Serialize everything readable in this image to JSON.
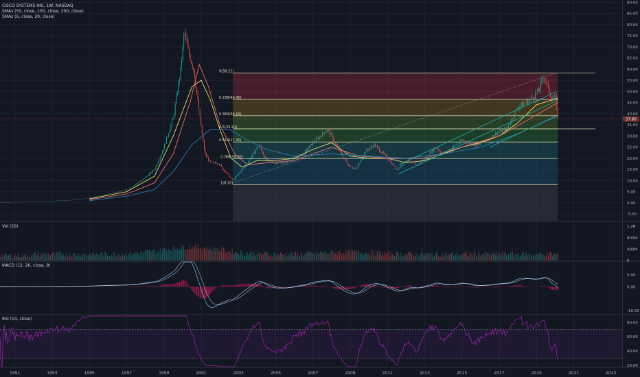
{
  "symbol_title": "CISCO SYSTEMS INC, 1W, NASDAQ",
  "indicators": {
    "sma_slow": "SMAs (50, close, 100, close, 200, close)",
    "sma_fast": "SMAs (6, close, 20, close)",
    "vol": "Vol (20)",
    "macd": "MACD (12, 26, close, 9)",
    "rsi": "RSI (14, close)"
  },
  "colors": {
    "background": "#131722",
    "grid": "#1e2230",
    "axis_text": "#b2b5be",
    "up": "#26a69a",
    "down": "#ef5350",
    "sma50": "#e8e36a",
    "sma100": "#ef6f6f",
    "sma200": "#2e7ab8",
    "macd_line": "#6fa8dc",
    "signal_line": "#e0e0e0",
    "macd_hist": "#e91e63",
    "rsi_line": "#9c27b0",
    "fib_line": "#c8c8a0",
    "trend": "#26a69a",
    "price_badge": "#6b2f33"
  },
  "chart_data": [
    {
      "type": "candlestick",
      "title": "CISCO SYSTEMS INC, 1W, NASDAQ",
      "x_ticks": [
        "1991",
        "1993",
        "1995",
        "1997",
        "1999",
        "2001",
        "2003",
        "2005",
        "2007",
        "2009",
        "2011",
        "2013",
        "2015",
        "2017",
        "2019",
        "2021",
        "2023"
      ],
      "x_range": [
        1990.2,
        2023.6
      ],
      "y_ticks": [
        "-5.00",
        "0.00",
        "5.00",
        "10.00",
        "15.00",
        "20.00",
        "25.00",
        "30.00",
        "35.00",
        "40.00",
        "45.00",
        "50.00",
        "55.00",
        "60.00",
        "65.00",
        "70.00",
        "75.00",
        "80.00",
        "85.00",
        "90.00"
      ],
      "ylim": [
        -8,
        91
      ],
      "current_price_label": "37.60",
      "current_price": 37.6,
      "price_path": [
        [
          1990.2,
          0.2
        ],
        [
          1992,
          0.5
        ],
        [
          1993,
          0.9
        ],
        [
          1994,
          1.2
        ],
        [
          1995,
          2.2
        ],
        [
          1996,
          4
        ],
        [
          1997,
          6
        ],
        [
          1997.8,
          10
        ],
        [
          1998.5,
          15
        ],
        [
          1999,
          25
        ],
        [
          1999.5,
          38
        ],
        [
          1999.9,
          60
        ],
        [
          2000.1,
          77
        ],
        [
          2000.3,
          68
        ],
        [
          2000.6,
          60
        ],
        [
          2000.9,
          40
        ],
        [
          2001.2,
          22
        ],
        [
          2001.5,
          18
        ],
        [
          2001.9,
          18
        ],
        [
          2002.3,
          14
        ],
        [
          2002.7,
          10
        ],
        [
          2003.1,
          14
        ],
        [
          2003.5,
          18
        ],
        [
          2004.1,
          26
        ],
        [
          2004.5,
          19
        ],
        [
          2005,
          18
        ],
        [
          2005.5,
          18
        ],
        [
          2006,
          20
        ],
        [
          2006.5,
          22
        ],
        [
          2007,
          27
        ],
        [
          2007.8,
          33
        ],
        [
          2008.3,
          25
        ],
        [
          2008.9,
          17
        ],
        [
          2009.3,
          15
        ],
        [
          2009.8,
          23
        ],
        [
          2010.3,
          26
        ],
        [
          2010.9,
          21
        ],
        [
          2011.5,
          15
        ],
        [
          2012,
          19
        ],
        [
          2012.6,
          17
        ],
        [
          2013,
          20
        ],
        [
          2013.6,
          25
        ],
        [
          2014,
          22
        ],
        [
          2014.5,
          25
        ],
        [
          2015,
          28
        ],
        [
          2015.7,
          26
        ],
        [
          2016.3,
          28
        ],
        [
          2016.8,
          31
        ],
        [
          2017.4,
          33
        ],
        [
          2018,
          43
        ],
        [
          2018.6,
          46
        ],
        [
          2019.1,
          50
        ],
        [
          2019.4,
          57
        ],
        [
          2019.8,
          47
        ],
        [
          2020.05,
          47
        ],
        [
          2020.15,
          37.6
        ]
      ],
      "sma_paths": {
        "sma50": [
          [
            1995,
            1.8
          ],
          [
            1997,
            5
          ],
          [
            1998.5,
            12
          ],
          [
            1999.5,
            30
          ],
          [
            2000.5,
            52
          ],
          [
            2001,
            55
          ],
          [
            2001.5,
            46
          ],
          [
            2002,
            33
          ],
          [
            2002.6,
            20
          ],
          [
            2003.2,
            16
          ],
          [
            2004,
            19
          ],
          [
            2005,
            19
          ],
          [
            2006,
            20
          ],
          [
            2007,
            24
          ],
          [
            2008,
            27
          ],
          [
            2009,
            21
          ],
          [
            2010,
            20
          ],
          [
            2011,
            20
          ],
          [
            2012,
            18
          ],
          [
            2013,
            19
          ],
          [
            2014,
            22
          ],
          [
            2015,
            25
          ],
          [
            2016,
            27
          ],
          [
            2017,
            30
          ],
          [
            2018,
            36
          ],
          [
            2019,
            44
          ],
          [
            2020.15,
            47
          ]
        ],
        "sma100": [
          [
            1995,
            1.5
          ],
          [
            1997,
            4
          ],
          [
            1998.5,
            9
          ],
          [
            1999.5,
            22
          ],
          [
            2000.4,
            45
          ],
          [
            2000.9,
            62
          ],
          [
            2001.4,
            52
          ],
          [
            2002,
            35
          ],
          [
            2002.8,
            22
          ],
          [
            2003.5,
            17
          ],
          [
            2004.5,
            18
          ],
          [
            2006,
            19
          ],
          [
            2008,
            25
          ],
          [
            2009.5,
            21
          ],
          [
            2011,
            20
          ],
          [
            2013,
            20
          ],
          [
            2015,
            25
          ],
          [
            2017,
            30
          ],
          [
            2018.5,
            37
          ],
          [
            2020.15,
            45
          ]
        ],
        "sma200": [
          [
            1995,
            1
          ],
          [
            1997,
            3
          ],
          [
            1998.5,
            6
          ],
          [
            1999.5,
            14
          ],
          [
            2000.5,
            26
          ],
          [
            2001.5,
            33
          ],
          [
            2002.5,
            33
          ],
          [
            2003.5,
            28
          ],
          [
            2004.5,
            24
          ],
          [
            2006,
            21
          ],
          [
            2008,
            22
          ],
          [
            2010,
            21
          ],
          [
            2012,
            20
          ],
          [
            2014,
            22
          ],
          [
            2016,
            25
          ],
          [
            2018,
            31
          ],
          [
            2020.15,
            39
          ]
        ]
      },
      "fib_levels": [
        {
          "ratio": "0",
          "value": 58.21,
          "label": "0(58.21)"
        },
        {
          "ratio": "0.236",
          "value": 46.4,
          "label": "0.236(46.40)"
        },
        {
          "ratio": "0.382",
          "value": 39.1,
          "label": "0.382(39.10)"
        },
        {
          "ratio": "0.5",
          "value": 33.2,
          "label": "0.5(33.20)"
        },
        {
          "ratio": "0.618",
          "value": 27.3,
          "label": "0.618(27.30)"
        },
        {
          "ratio": "0.786",
          "value": 19.9,
          "label": "0.786(19.90)"
        },
        {
          "ratio": "1",
          "value": 8.2,
          "label": "1(8.20)"
        }
      ],
      "fib_x_range": [
        2002.7,
        2020.15
      ],
      "fib_band_colors": [
        "#9c2b3a",
        "#8a6d1a",
        "#4d7a2a",
        "#2e7d32",
        "#1d6b72",
        "#1b5a7a",
        "#44474f",
        "#1a237e"
      ],
      "fib_bottom_value": -8
    },
    {
      "type": "bar",
      "title": "Vol (20)",
      "y_ticks": [
        "0",
        "400M",
        "800M",
        "1.2B"
      ],
      "ylim": [
        0,
        1.35
      ]
    },
    {
      "type": "line",
      "title": "MACD (12, 26, close, 9)",
      "y_ticks": [
        "-10.00",
        "0.00",
        "5.00"
      ],
      "ylim": [
        -11.5,
        10.5
      ]
    },
    {
      "type": "line",
      "title": "RSI (14, close)",
      "y_ticks": [
        "20.00",
        "40.00",
        "60.00",
        "80.00"
      ],
      "ylim": [
        17,
        90
      ],
      "bands": [
        30,
        70
      ]
    }
  ]
}
